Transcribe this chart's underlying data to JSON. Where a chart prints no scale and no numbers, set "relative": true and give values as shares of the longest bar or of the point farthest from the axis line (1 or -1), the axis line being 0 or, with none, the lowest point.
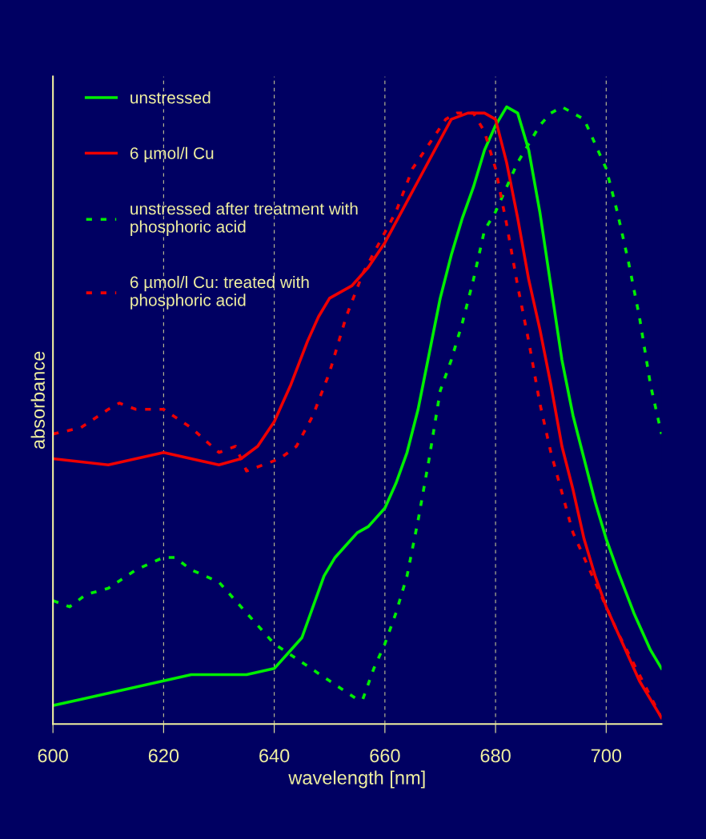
{
  "chart_data": {
    "type": "line",
    "relative": true,
    "xlabel": "wavelength [nm]",
    "ylabel": "absorbance",
    "xlim": [
      600,
      710
    ],
    "xticks": [
      600,
      620,
      640,
      660,
      680,
      700
    ],
    "grid": "x",
    "legend": "top left",
    "marker": "none",
    "series": [
      {
        "name": "unstressed",
        "color": "#00ee00",
        "line_style": "solid",
        "x": [
          600,
          605,
          610,
          615,
          620,
          625,
          630,
          635,
          640,
          643,
          645,
          647,
          649,
          651,
          653,
          655,
          657,
          660,
          662,
          664,
          666,
          668,
          670,
          672,
          674,
          676,
          678,
          680,
          682,
          684,
          686,
          688,
          690,
          692,
          694,
          696,
          698,
          700,
          702,
          705,
          708,
          710
        ],
        "values": [
          0.03,
          0.04,
          0.05,
          0.06,
          0.07,
          0.08,
          0.08,
          0.08,
          0.09,
          0.12,
          0.14,
          0.19,
          0.24,
          0.27,
          0.29,
          0.31,
          0.32,
          0.35,
          0.39,
          0.44,
          0.51,
          0.6,
          0.69,
          0.76,
          0.82,
          0.87,
          0.93,
          0.97,
          1.0,
          0.99,
          0.93,
          0.83,
          0.71,
          0.59,
          0.5,
          0.43,
          0.36,
          0.3,
          0.25,
          0.18,
          0.12,
          0.09
        ]
      },
      {
        "name": "6 µmol/l Cu",
        "color": "#ee0000",
        "line_style": "solid",
        "x": [
          600,
          610,
          620,
          630,
          634,
          637,
          640,
          643,
          646,
          648,
          650,
          654,
          657,
          660,
          663,
          666,
          669,
          672,
          675,
          678,
          680,
          682,
          684,
          686,
          688,
          690,
          692,
          694,
          696,
          698,
          700,
          703,
          706,
          708,
          710
        ],
        "values": [
          0.43,
          0.42,
          0.44,
          0.42,
          0.43,
          0.45,
          0.49,
          0.55,
          0.62,
          0.66,
          0.69,
          0.71,
          0.74,
          0.78,
          0.83,
          0.88,
          0.93,
          0.98,
          0.99,
          0.99,
          0.98,
          0.91,
          0.82,
          0.72,
          0.64,
          0.55,
          0.45,
          0.38,
          0.3,
          0.24,
          0.19,
          0.13,
          0.07,
          0.04,
          0.01
        ]
      },
      {
        "name": "unstressed after treatment with phosphoric acid",
        "color": "#00ee00",
        "line_style": "dotted",
        "x": [
          600,
          603,
          606,
          610,
          615,
          620,
          622,
          625,
          630,
          635,
          640,
          645,
          650,
          655,
          656,
          658,
          660,
          662,
          664,
          666,
          668,
          670,
          672,
          674,
          676,
          678,
          680,
          682,
          684,
          686,
          688,
          690,
          692,
          694,
          696,
          698,
          700,
          702,
          704,
          706,
          708,
          710
        ],
        "values": [
          0.2,
          0.19,
          0.21,
          0.22,
          0.25,
          0.27,
          0.27,
          0.25,
          0.23,
          0.18,
          0.13,
          0.1,
          0.07,
          0.04,
          0.04,
          0.09,
          0.13,
          0.18,
          0.24,
          0.33,
          0.43,
          0.54,
          0.59,
          0.65,
          0.72,
          0.8,
          0.83,
          0.87,
          0.91,
          0.94,
          0.97,
          0.99,
          1.0,
          0.99,
          0.98,
          0.94,
          0.9,
          0.83,
          0.75,
          0.66,
          0.55,
          0.47
        ]
      },
      {
        "name": "6 µmol/l Cu: treated with phosphoric acid",
        "color": "#ee0000",
        "line_style": "dotted",
        "x": [
          600,
          605,
          610,
          612,
          615,
          618,
          620,
          625,
          630,
          633,
          635,
          638,
          641,
          644,
          647,
          650,
          653,
          656,
          659,
          662,
          665,
          668,
          671,
          673,
          676,
          678,
          680,
          682,
          684,
          686,
          688,
          690,
          694,
          698,
          702,
          706,
          710
        ],
        "values": [
          0.47,
          0.48,
          0.51,
          0.52,
          0.51,
          0.51,
          0.51,
          0.48,
          0.44,
          0.45,
          0.41,
          0.42,
          0.43,
          0.45,
          0.5,
          0.57,
          0.66,
          0.73,
          0.78,
          0.83,
          0.9,
          0.94,
          0.98,
          0.99,
          0.99,
          0.96,
          0.9,
          0.81,
          0.71,
          0.62,
          0.52,
          0.44,
          0.31,
          0.23,
          0.15,
          0.08,
          0.01
        ]
      }
    ]
  }
}
